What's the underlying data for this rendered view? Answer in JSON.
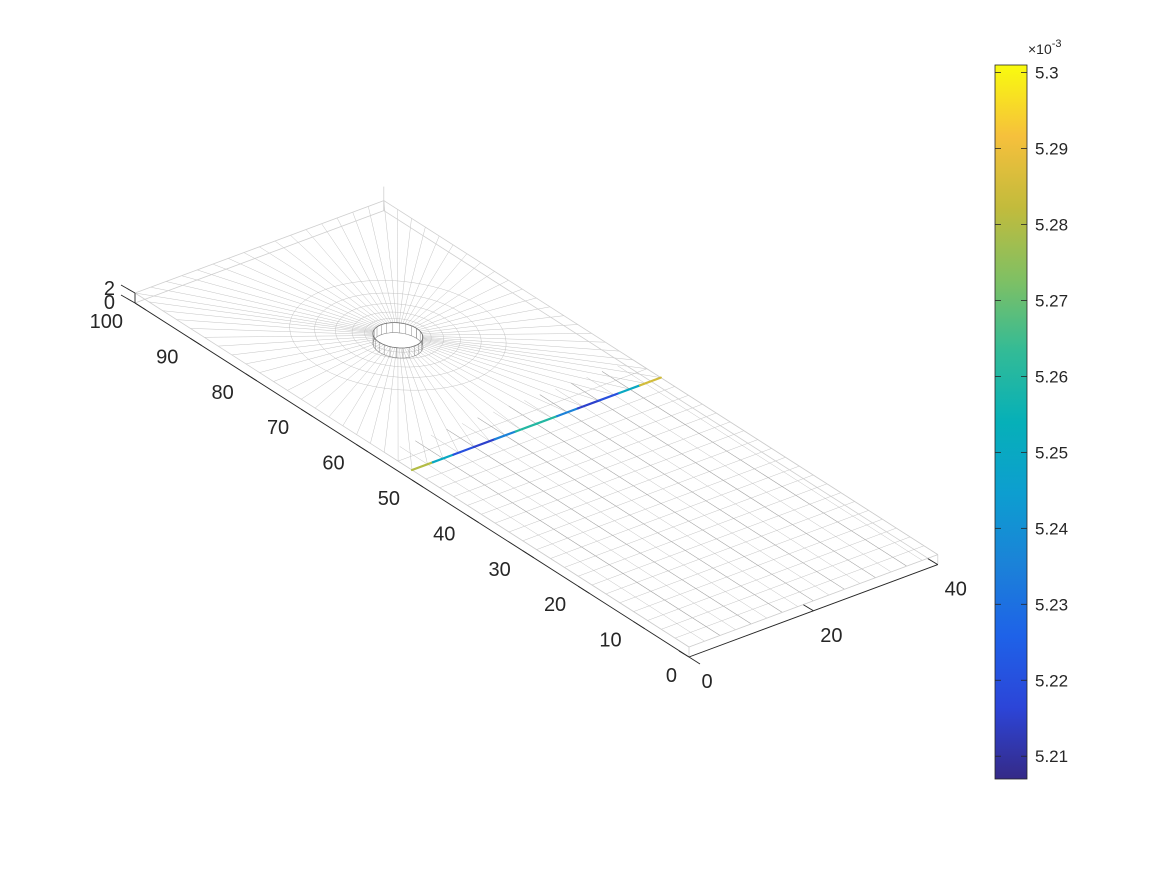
{
  "chart_data": {
    "type": "surface-mesh-3d",
    "title": "",
    "xlabel": "",
    "ylabel": "",
    "zlabel": "",
    "x_axis": {
      "range": [
        0,
        40
      ],
      "ticks": [
        0,
        20,
        40
      ]
    },
    "y_axis": {
      "range": [
        0,
        100
      ],
      "ticks": [
        0,
        10,
        20,
        30,
        40,
        50,
        60,
        70,
        80,
        90,
        100
      ]
    },
    "z_axis": {
      "range": [
        0,
        2
      ],
      "ticks": [
        0,
        2
      ]
    },
    "grid": false,
    "mesh": {
      "description_hidden": true,
      "plate": {
        "x": [
          0,
          40
        ],
        "y": [
          0,
          100
        ],
        "z": [
          0,
          2
        ]
      },
      "hole": {
        "center_x": 20,
        "center_y": 75,
        "radius": 3
      }
    },
    "highlighted_line": {
      "y": 50,
      "x_start": 0,
      "x_end": 40,
      "values": [
        0.00529,
        0.00527,
        0.00523,
        0.00521,
        0.00522,
        0.00525,
        0.00527,
        0.00525,
        0.00522,
        0.00521,
        0.00523,
        0.00527,
        0.0053
      ]
    },
    "colorbar": {
      "location": "right",
      "colormap": "parula",
      "range": [
        0.005207,
        0.005301
      ],
      "ticks": [
        "5.21",
        "5.22",
        "5.23",
        "5.24",
        "5.25",
        "5.26",
        "5.27",
        "5.28",
        "5.29",
        "5.3"
      ],
      "tick_values": [
        5.21,
        5.22,
        5.23,
        5.24,
        5.25,
        5.26,
        5.27,
        5.28,
        5.29,
        5.3
      ],
      "exponent_label": "×10",
      "exponent_power": "-3"
    }
  },
  "colors": {
    "axis": "#262626",
    "mesh": "#bdbdbd",
    "box": "#cfcfcf"
  }
}
